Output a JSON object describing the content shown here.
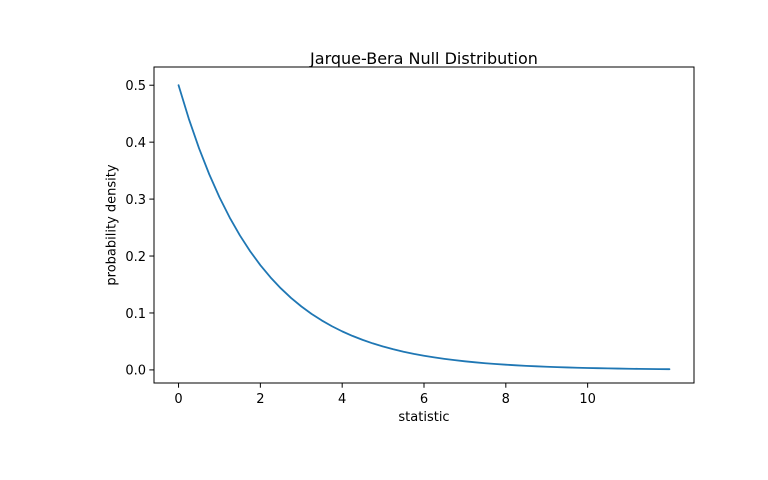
{
  "figure": {
    "background": "#ffffff",
    "text_color": "#000000",
    "spine_color": "#000000"
  },
  "chart_data": {
    "type": "line",
    "title": "Jarque-Bera Null Distribution",
    "xlabel": "statistic",
    "ylabel": "probability density",
    "grid": false,
    "legend": false,
    "line_color": "#1f77b4",
    "xlim": [
      -0.6,
      12.6
    ],
    "ylim": [
      -0.023,
      0.532
    ],
    "xticks": {
      "values": [
        0,
        2,
        4,
        6,
        8,
        10
      ],
      "labels": [
        "0",
        "2",
        "4",
        "6",
        "8",
        "10"
      ]
    },
    "yticks": {
      "values": [
        0.0,
        0.1,
        0.2,
        0.3,
        0.4,
        0.5
      ],
      "labels": [
        "0.0",
        "0.1",
        "0.2",
        "0.3",
        "0.4",
        "0.5"
      ]
    },
    "x": [
      0,
      0.25,
      0.5,
      0.75,
      1,
      1.25,
      1.5,
      1.75,
      2,
      2.25,
      2.5,
      2.75,
      3,
      3.25,
      3.5,
      3.75,
      4,
      4.25,
      4.5,
      4.75,
      5,
      5.25,
      5.5,
      5.75,
      6,
      6.25,
      6.5,
      6.75,
      7,
      7.25,
      7.5,
      7.75,
      8,
      8.25,
      8.5,
      8.75,
      9,
      9.25,
      9.5,
      9.75,
      10,
      10.25,
      10.5,
      10.75,
      11,
      11.25,
      11.5,
      11.75,
      12
    ],
    "y": [
      0.5,
      0.44125,
      0.3894,
      0.34364,
      0.30327,
      0.26763,
      0.23618,
      0.20843,
      0.18394,
      0.16233,
      0.14325,
      0.12642,
      0.11157,
      0.09846,
      0.08689,
      0.07668,
      0.06767,
      0.05972,
      0.0527,
      0.04651,
      0.04104,
      0.03622,
      0.03196,
      0.02821,
      0.02489,
      0.02197,
      0.01939,
      0.01711,
      0.0151,
      0.01332,
      0.01176,
      0.01038,
      0.00916,
      0.00808,
      0.00713,
      0.00629,
      0.00555,
      0.0049,
      0.00433,
      0.00382,
      0.00337,
      0.00297,
      0.00262,
      0.00232,
      0.00204,
      0.0018,
      0.00159,
      0.0014,
      0.00124
    ]
  }
}
